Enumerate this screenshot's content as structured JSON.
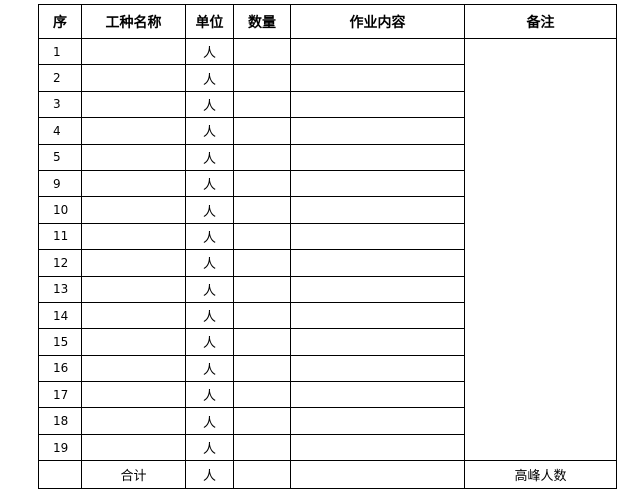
{
  "headers": {
    "seq": "序",
    "trade": "工种名称",
    "unit": "单位",
    "qty": "数量",
    "work": "作业内容",
    "remark": "备注"
  },
  "unit_value": "人",
  "row_numbers": [
    "1",
    "2",
    "3",
    "4",
    "5",
    "9",
    "10",
    "11",
    "12",
    "13",
    "14",
    "15",
    "16",
    "17",
    "18",
    "19"
  ],
  "total_row": {
    "label": "合计",
    "unit": "人",
    "remark": "高峰人数"
  }
}
